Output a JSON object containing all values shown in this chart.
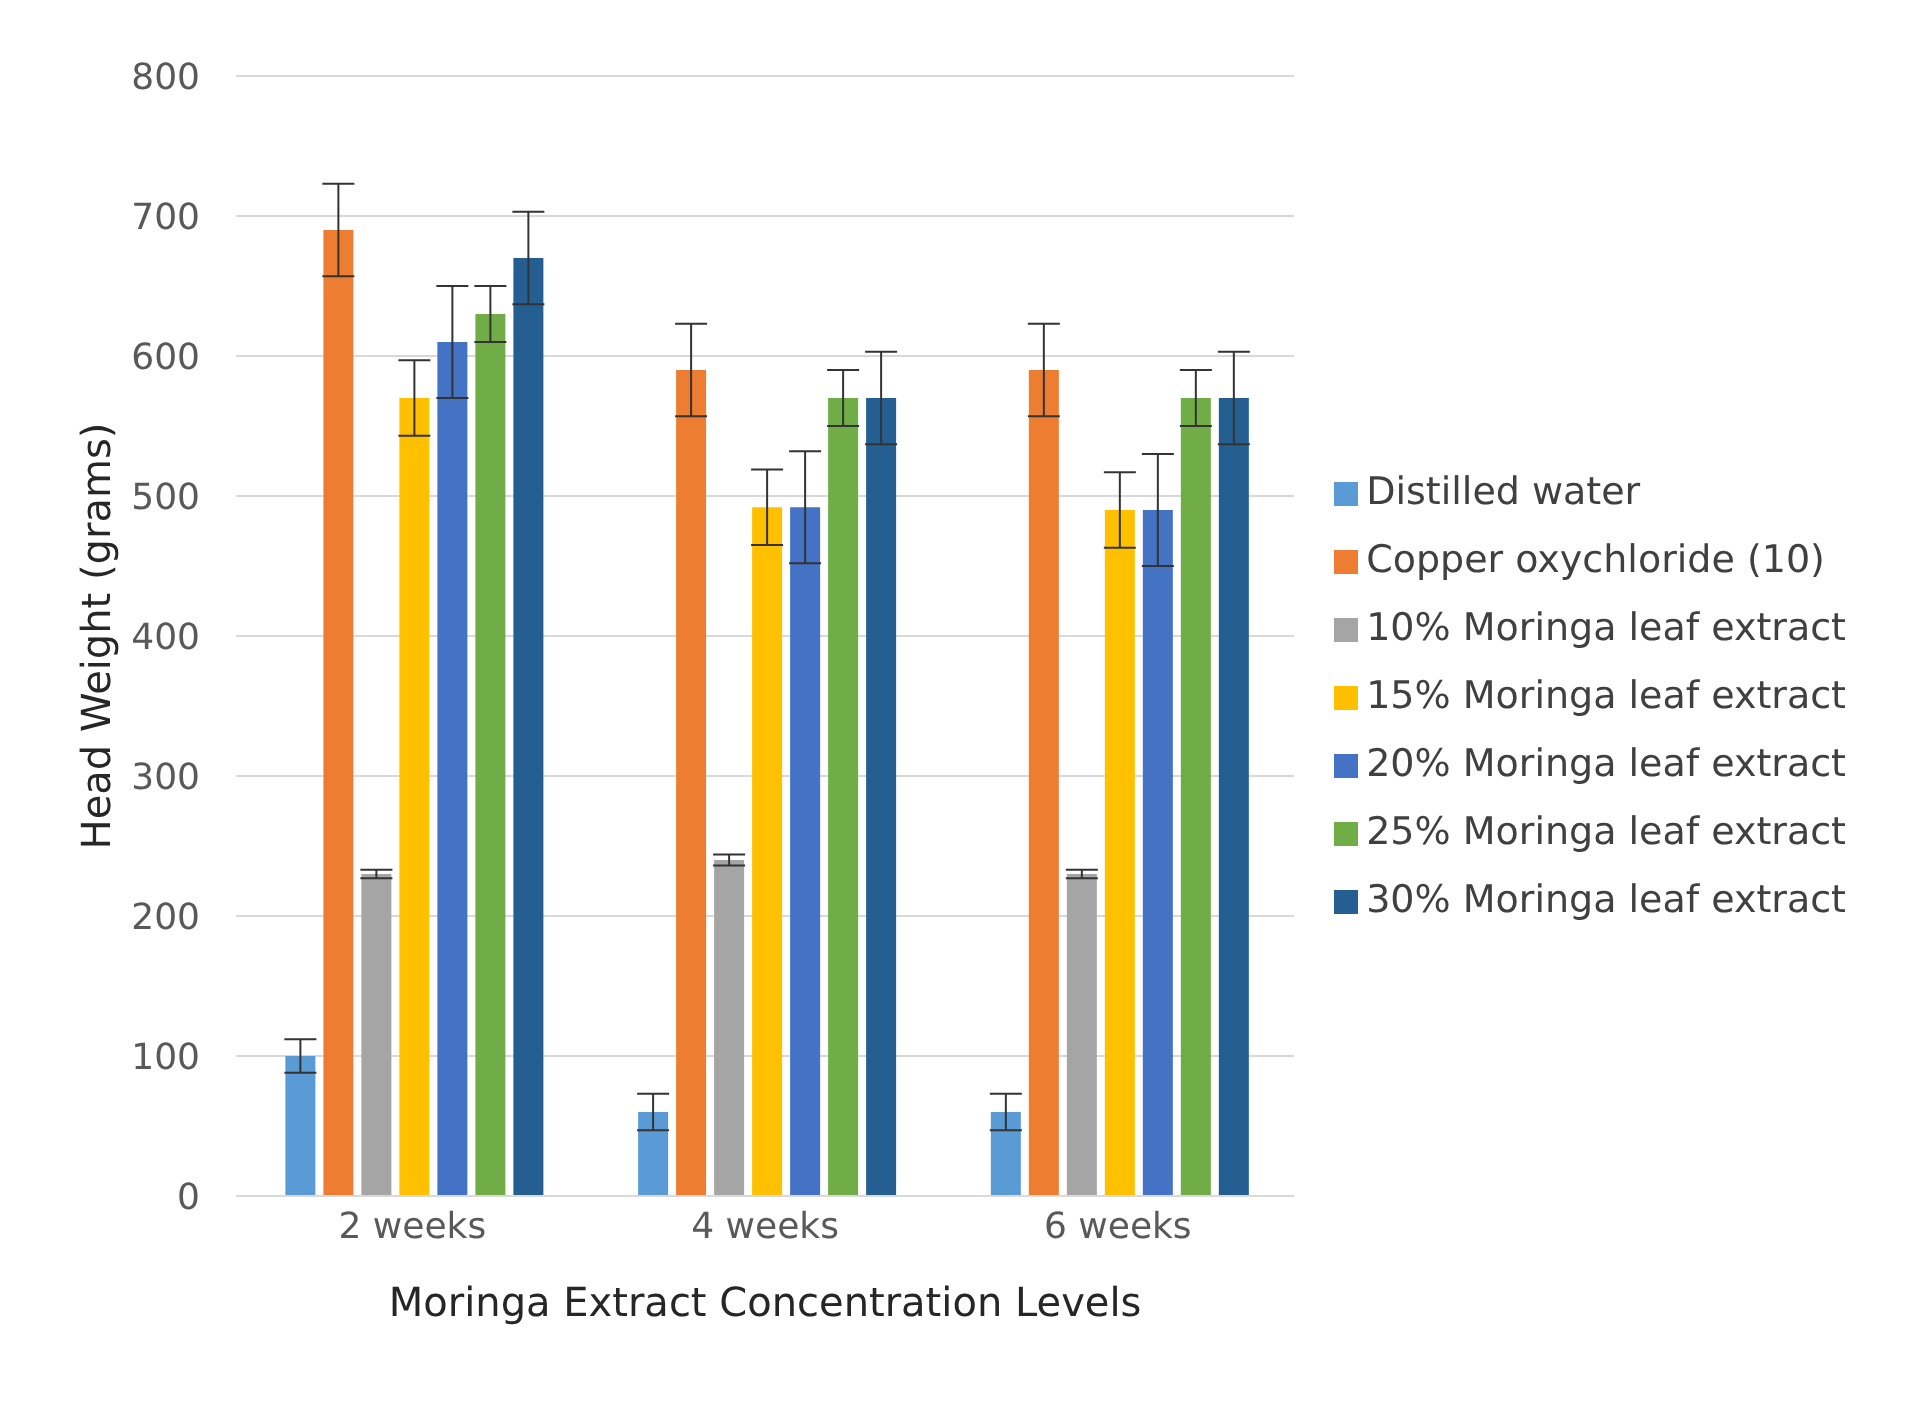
{
  "chart_data": {
    "type": "bar",
    "xlabel": "Moringa Extract Concentration Levels",
    "ylabel": "Head Weight (grams)",
    "categories": [
      "2 weeks",
      "4 weeks",
      "6 weeks"
    ],
    "series": [
      {
        "name": "Distilled water",
        "color": "#5b9bd5",
        "values": [
          100,
          60,
          60
        ],
        "errors": [
          12,
          13,
          13
        ]
      },
      {
        "name": "Copper oxychloride (10)",
        "color": "#ed7d31",
        "values": [
          690,
          590,
          590
        ],
        "errors": [
          33,
          33,
          33
        ]
      },
      {
        "name": "10% Moringa leaf extract",
        "color": "#a5a5a5",
        "values": [
          230,
          240,
          230
        ],
        "errors": [
          3,
          4,
          3
        ]
      },
      {
        "name": "15% Moringa leaf extract",
        "color": "#ffc000",
        "values": [
          570,
          492,
          490
        ],
        "errors": [
          27,
          27,
          27
        ]
      },
      {
        "name": "20% Moringa leaf extract",
        "color": "#4472c4",
        "values": [
          610,
          492,
          490
        ],
        "errors": [
          40,
          40,
          40
        ]
      },
      {
        "name": "25% Moringa leaf extract",
        "color": "#70ad47",
        "values": [
          630,
          570,
          570
        ],
        "errors": [
          20,
          20,
          20
        ]
      },
      {
        "name": "30% Moringa leaf extract",
        "color": "#255e91",
        "values": [
          670,
          570,
          570
        ],
        "errors": [
          33,
          33,
          33
        ]
      }
    ],
    "ylim": [
      0,
      800
    ],
    "yticks": [
      0,
      100,
      200,
      300,
      400,
      500,
      600,
      700,
      800
    ],
    "grid": "y",
    "legend": "right"
  }
}
